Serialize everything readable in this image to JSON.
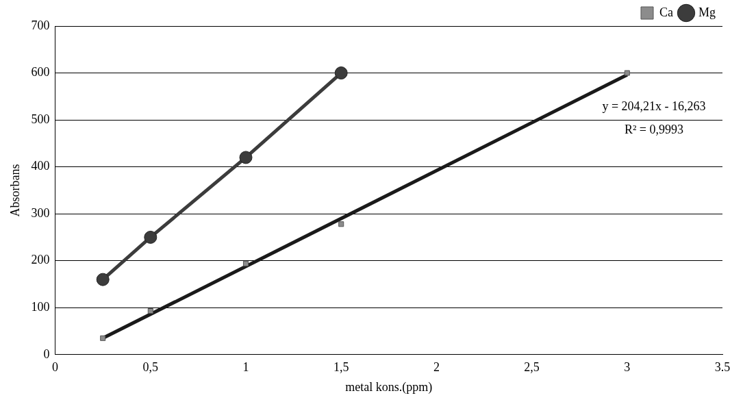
{
  "chart_data": {
    "type": "scatter",
    "xlabel": "metal kons.(ppm)",
    "ylabel": "Absorbans",
    "xlim": [
      0,
      3.5
    ],
    "xticks": [
      0,
      {
        "value": 0.5,
        "label": "0,5"
      },
      1,
      {
        "value": 1.5,
        "label": "1,5"
      },
      2,
      {
        "value": 2.5,
        "label": "2,5"
      },
      3,
      3.5
    ],
    "ylim": [
      0,
      700
    ],
    "yticks": [
      0,
      100,
      200,
      300,
      400,
      500,
      600,
      700
    ],
    "grid": "y",
    "legend": "top right",
    "annotations": [
      "y = 204,21x - 16,263",
      "R² = 0,9993"
    ],
    "series": [
      {
        "name": "Ca",
        "marker": "square",
        "color": "#8c8c8c",
        "x": [
          0.25,
          0.5,
          1,
          1.5,
          3
        ],
        "values": [
          35,
          93,
          194,
          278,
          600
        ]
      },
      {
        "type": "line",
        "marker": "none",
        "color": "#1a1a1a",
        "x": [
          0.25,
          3
        ],
        "values": [
          35,
          596
        ]
      },
      {
        "name": "Mg",
        "type": "line",
        "marker": "circle",
        "color": "#3c3c3c",
        "x": [
          0.25,
          0.5,
          1,
          1.5
        ],
        "values": [
          160,
          250,
          420,
          600
        ]
      }
    ]
  }
}
